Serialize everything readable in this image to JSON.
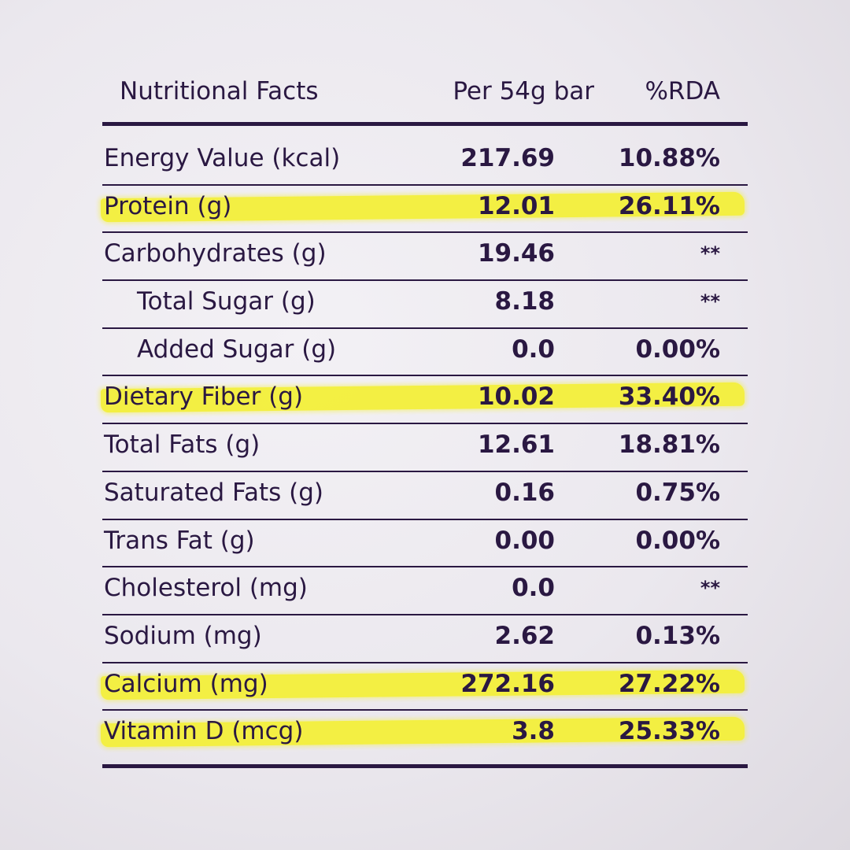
{
  "table": {
    "headers": {
      "name": "Nutritional Facts",
      "per": "Per 54g bar",
      "rda": "%RDA"
    },
    "rows": [
      {
        "name": "Energy Value (kcal)",
        "value": "217.69",
        "rda": "10.88%",
        "highlight": false,
        "indent": false
      },
      {
        "name": "Protein (g)",
        "value": "12.01",
        "rda": "26.11%",
        "highlight": true,
        "indent": false
      },
      {
        "name": "Carbohydrates (g)",
        "value": "19.46",
        "rda": "**",
        "highlight": false,
        "indent": false
      },
      {
        "name": "Total Sugar (g)",
        "value": "8.18",
        "rda": "**",
        "highlight": false,
        "indent": true
      },
      {
        "name": "Added Sugar (g)",
        "value": "0.0",
        "rda": "0.00%",
        "highlight": false,
        "indent": true
      },
      {
        "name": "Dietary Fiber (g)",
        "value": "10.02",
        "rda": "33.40%",
        "highlight": true,
        "indent": false
      },
      {
        "name": "Total Fats (g)",
        "value": "12.61",
        "rda": "18.81%",
        "highlight": false,
        "indent": false
      },
      {
        "name": "Saturated Fats (g)",
        "value": "0.16",
        "rda": "0.75%",
        "highlight": false,
        "indent": false
      },
      {
        "name": "Trans Fat (g)",
        "value": "0.00",
        "rda": "0.00%",
        "highlight": false,
        "indent": false
      },
      {
        "name": "Cholesterol (mg)",
        "value": "0.0",
        "rda": "**",
        "highlight": false,
        "indent": false
      },
      {
        "name": "Sodium (mg)",
        "value": "2.62",
        "rda": "0.13%",
        "highlight": false,
        "indent": false
      },
      {
        "name": "Calcium (mg)",
        "value": "272.16",
        "rda": "27.22%",
        "highlight": true,
        "indent": false
      },
      {
        "name": "Vitamin D (mcg)",
        "value": "3.8",
        "rda": "25.33%",
        "highlight": true,
        "indent": false
      }
    ]
  },
  "colors": {
    "text": "#2a1842",
    "highlight": "#f4f03a"
  }
}
